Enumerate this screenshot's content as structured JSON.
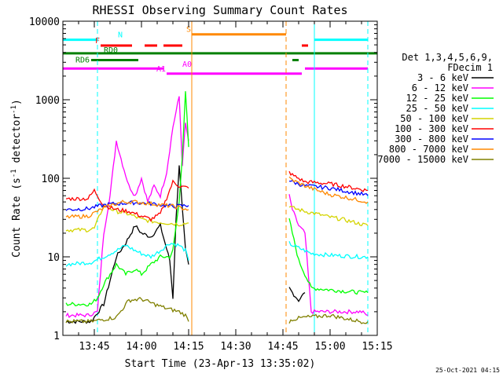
{
  "chart_data": {
    "type": "line",
    "title": "RHESSI Observing Summary Count Rates",
    "xlabel": "Start Time (23-Apr-13 13:35:02)",
    "ylabel_text": "Count Rate (s",
    "ylabel_exp": "-1",
    "ylabel_tail": " detector",
    "ylabel_end": ")",
    "yscale": "log",
    "xlim": [
      "13:35",
      "15:15"
    ],
    "ylim": [
      1,
      10000
    ],
    "x_ticks": [
      "13:45",
      "14:00",
      "14:15",
      "14:30",
      "14:45",
      "15:00",
      "15:15"
    ],
    "y_ticks": [
      "1",
      "10",
      "100",
      "1000",
      "10000"
    ],
    "legend_header": [
      "Det 1,3,4,5,6,9,",
      "FDecim 1"
    ],
    "legend_position": "right",
    "series": [
      {
        "name": "3 - 6 keV",
        "color": "#000000",
        "x": [
          "13:36",
          "13:44",
          "13:48",
          "13:50",
          "13:52",
          "13:55",
          "13:58",
          "14:00",
          "14:03",
          "14:06",
          "14:09",
          "14:10",
          "14:11",
          "14:12",
          "14:13",
          "14:14",
          "14:15",
          "14:47",
          "14:48",
          "14:50",
          "14:52"
        ],
        "y": [
          1.5,
          1.5,
          2.5,
          5,
          10,
          15,
          25,
          20,
          18,
          25,
          9,
          3,
          30,
          150,
          40,
          12,
          8,
          4,
          3.5,
          2.8,
          3.5
        ]
      },
      {
        "name": "6 - 12 keV",
        "color": "#ff00ff",
        "x": [
          "13:36",
          "13:43",
          "13:46",
          "13:48",
          "13:50",
          "13:52",
          "13:54",
          "13:56",
          "13:58",
          "14:00",
          "14:02",
          "14:04",
          "14:06",
          "14:08",
          "14:10",
          "14:12",
          "14:13",
          "14:14",
          "14:15",
          "14:47",
          "14:48",
          "14:50",
          "14:52",
          "14:54",
          "15:07",
          "15:10",
          "15:12"
        ],
        "y": [
          1.8,
          1.8,
          2,
          20,
          60,
          300,
          150,
          80,
          60,
          100,
          50,
          80,
          60,
          120,
          450,
          1100,
          150,
          500,
          300,
          60,
          40,
          25,
          20,
          2,
          2,
          2,
          1.8
        ]
      },
      {
        "name": "12 - 25 keV",
        "color": "#00ff00",
        "x": [
          "13:36",
          "13:44",
          "13:46",
          "13:48",
          "13:50",
          "13:52",
          "13:55",
          "13:58",
          "14:00",
          "14:03",
          "14:06",
          "14:09",
          "14:10",
          "14:12",
          "14:13",
          "14:14",
          "14:15",
          "14:47",
          "14:48",
          "14:50",
          "14:52",
          "14:54",
          "15:00",
          "15:10",
          "15:12"
        ],
        "y": [
          2.5,
          2.5,
          3,
          4.5,
          6,
          8,
          6,
          7,
          6,
          8,
          10,
          10,
          12,
          50,
          200,
          1300,
          250,
          30,
          20,
          9,
          6,
          4,
          3.8,
          3.5,
          3.5
        ]
      },
      {
        "name": "25 - 50 keV",
        "color": "#00ffff",
        "x": [
          "13:36",
          "13:44",
          "13:48",
          "13:50",
          "13:52",
          "13:55",
          "13:58",
          "14:00",
          "14:03",
          "14:06",
          "14:09",
          "14:12",
          "14:14",
          "14:15",
          "14:47",
          "14:48",
          "14:50",
          "14:52",
          "14:54",
          "15:00",
          "15:10",
          "15:12"
        ],
        "y": [
          8,
          8.5,
          10,
          11,
          12,
          14,
          12,
          11,
          10,
          12,
          15,
          14,
          12,
          9,
          15,
          14,
          13,
          12,
          11,
          10.5,
          10,
          10
        ]
      },
      {
        "name": "50 - 100 keV",
        "color": "#d4d400",
        "x": [
          "13:36",
          "13:43",
          "13:45",
          "13:48",
          "13:52",
          "13:56",
          "14:00",
          "14:04",
          "14:08",
          "14:12",
          "14:15",
          "14:47",
          "14:48",
          "14:52",
          "14:56",
          "15:00",
          "15:04",
          "15:10",
          "15:12"
        ],
        "y": [
          22,
          22,
          23,
          45,
          38,
          35,
          30,
          28,
          27,
          26,
          27,
          45,
          42,
          38,
          35,
          32,
          30,
          26,
          25
        ]
      },
      {
        "name": "100 - 300 keV",
        "color": "#ff0000",
        "x": [
          "13:36",
          "13:43",
          "13:45",
          "13:48",
          "13:52",
          "13:56",
          "14:00",
          "14:03",
          "14:06",
          "14:10",
          "14:12",
          "14:15",
          "14:47",
          "14:48",
          "14:52",
          "14:56",
          "15:00",
          "15:04",
          "15:10",
          "15:12"
        ],
        "y": [
          55,
          55,
          70,
          45,
          40,
          38,
          33,
          30,
          35,
          90,
          80,
          75,
          120,
          110,
          90,
          88,
          85,
          80,
          72,
          70
        ]
      },
      {
        "name": "300 - 800 keV",
        "color": "#0000ff",
        "x": [
          "13:36",
          "13:43",
          "13:46",
          "13:50",
          "13:54",
          "13:58",
          "14:02",
          "14:06",
          "14:10",
          "14:15",
          "14:47",
          "14:48",
          "14:52",
          "14:56",
          "15:00",
          "15:04",
          "15:10",
          "15:12"
        ],
        "y": [
          40,
          41,
          44,
          47,
          48,
          49,
          48,
          46,
          44,
          45,
          95,
          90,
          80,
          78,
          75,
          70,
          63,
          60
        ]
      },
      {
        "name": "800 - 7000 keV",
        "color": "#ff8800",
        "x": [
          "13:36",
          "13:43",
          "13:46",
          "13:50",
          "13:54",
          "13:58",
          "14:02",
          "14:06",
          "14:10",
          "14:15",
          "14:47",
          "14:48",
          "14:52",
          "14:56",
          "15:00",
          "15:04",
          "15:10",
          "15:12"
        ],
        "y": [
          32,
          33,
          38,
          45,
          50,
          50,
          48,
          46,
          44,
          40,
          100,
          95,
          80,
          70,
          62,
          58,
          52,
          50
        ]
      },
      {
        "name": "7000 - 15000 keV",
        "color": "#808000",
        "x": [
          "13:36",
          "13:44",
          "13:48",
          "13:52",
          "13:56",
          "14:00",
          "14:04",
          "14:08",
          "14:12",
          "14:14",
          "14:15",
          "14:47",
          "14:48",
          "14:52",
          "15:00",
          "15:06",
          "15:10",
          "15:12"
        ],
        "y": [
          1.5,
          1.5,
          1.6,
          1.7,
          2.8,
          2.9,
          2.5,
          2.2,
          2,
          1.8,
          1.5,
          1.5,
          1.6,
          1.7,
          1.8,
          1.6,
          1.5,
          1.5
        ]
      }
    ],
    "flag_bars": [
      {
        "label": "N",
        "color": "#00ffff",
        "y": 5800,
        "segments": [
          [
            "13:35",
            "13:46"
          ],
          [
            "14:55",
            "15:12"
          ]
        ]
      },
      {
        "label": "F",
        "color": "#ff0000",
        "y": 4900,
        "segments": [
          [
            "13:47",
            "13:57"
          ],
          [
            "14:01",
            "14:05"
          ],
          [
            "14:07",
            "14:13"
          ],
          [
            "14:51",
            "14:53"
          ]
        ]
      },
      {
        "label": "S",
        "color": "#ff8800",
        "y": 6800,
        "segments": [
          [
            "14:16",
            "14:46"
          ]
        ]
      },
      {
        "label": "RD0",
        "color": "#008000",
        "y": 3900,
        "segments": [
          [
            "13:35",
            "15:15"
          ]
        ]
      },
      {
        "label": "RD6",
        "color": "#008000",
        "y": 3200,
        "segments": [
          [
            "13:44",
            "13:59"
          ],
          [
            "14:48",
            "14:50"
          ]
        ]
      },
      {
        "label": "A0",
        "color": "#ff00ff",
        "y": 2500,
        "segments": [
          [
            "13:35",
            "14:07"
          ],
          [
            "14:52",
            "15:12"
          ]
        ]
      },
      {
        "label": "A1",
        "color": "#ff00ff",
        "y": 2150,
        "segments": [
          [
            "14:08",
            "14:51"
          ]
        ]
      }
    ],
    "vertical_lines": [
      {
        "x": "13:35",
        "color": "#00ffff",
        "style": "solid"
      },
      {
        "x": "13:46",
        "color": "#00ffff",
        "style": "dashed"
      },
      {
        "x": "14:16",
        "color": "#ff8800",
        "style": "solid"
      },
      {
        "x": "14:46",
        "color": "#ff8800",
        "style": "dashed"
      },
      {
        "x": "14:55",
        "color": "#00ffff",
        "style": "solid"
      },
      {
        "x": "15:12",
        "color": "#00ffff",
        "style": "dashed"
      }
    ],
    "timestamp": "25-Oct-2021 04:15"
  }
}
